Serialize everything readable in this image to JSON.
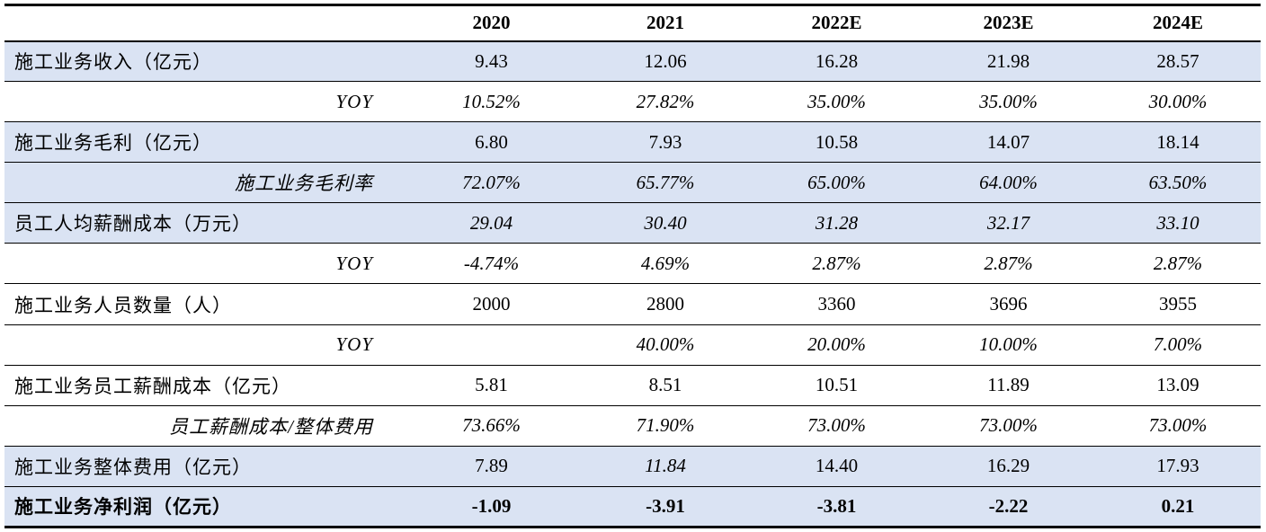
{
  "header": [
    "",
    "2020",
    "2021",
    "2022E",
    "2023E",
    "2024E"
  ],
  "rows": [
    {
      "label": "施工业务收入（亿元）",
      "values": [
        "9.43",
        "12.06",
        "16.28",
        "21.98",
        "28.57"
      ]
    },
    {
      "label": "YOY",
      "values": [
        "10.52%",
        "27.82%",
        "35.00%",
        "35.00%",
        "30.00%"
      ]
    },
    {
      "label": "施工业务毛利（亿元）",
      "values": [
        "6.80",
        "7.93",
        "10.58",
        "14.07",
        "18.14"
      ]
    },
    {
      "label": "施工业务毛利率",
      "values": [
        "72.07%",
        "65.77%",
        "65.00%",
        "64.00%",
        "63.50%"
      ]
    },
    {
      "label": "员工人均薪酬成本（万元）",
      "values": [
        "29.04",
        "30.40",
        "31.28",
        "32.17",
        "33.10"
      ]
    },
    {
      "label": "YOY",
      "values": [
        "-4.74%",
        "4.69%",
        "2.87%",
        "2.87%",
        "2.87%"
      ]
    },
    {
      "label": "施工业务人员数量（人）",
      "values": [
        "2000",
        "2800",
        "3360",
        "3696",
        "3955"
      ]
    },
    {
      "label": "YOY",
      "values": [
        "",
        "40.00%",
        "20.00%",
        "10.00%",
        "7.00%"
      ]
    },
    {
      "label": "施工业务员工薪酬成本（亿元）",
      "values": [
        "5.81",
        "8.51",
        "10.51",
        "11.89",
        "13.09"
      ]
    },
    {
      "label": "员工薪酬成本/整体费用",
      "values": [
        "73.66%",
        "71.90%",
        "73.00%",
        "73.00%",
        "73.00%"
      ]
    },
    {
      "label": "施工业务整体费用（亿元）",
      "values": [
        "7.89",
        "11.84",
        "14.40",
        "16.29",
        "17.93"
      ]
    },
    {
      "label": "施工业务净利润（亿元）",
      "values": [
        "-1.09",
        "-3.91",
        "-3.81",
        "-2.22",
        "0.21"
      ]
    }
  ],
  "colors": {
    "shaded_row": "#dae3f3",
    "rule": "#000000"
  }
}
